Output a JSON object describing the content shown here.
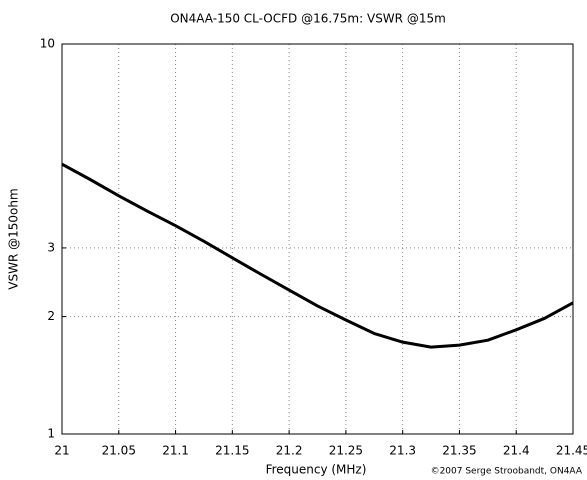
{
  "chart_data": {
    "type": "line",
    "title": "ON4AA-150 CL-OCFD @16.75m: VSWR @15m",
    "x_label": "Frequency (MHz)",
    "y_label": "VSWR @150ohm",
    "annotation": "©2007 Serge Stroobandt, ON4AA",
    "x": [
      21,
      21.025,
      21.05,
      21.075,
      21.1,
      21.125,
      21.15,
      21.175,
      21.2,
      21.225,
      21.25,
      21.275,
      21.3,
      21.325,
      21.35,
      21.375,
      21.4,
      21.425,
      21.45
    ],
    "series": [
      {
        "name": "VSWR",
        "color": "#000000",
        "values": [
          4.92,
          4.49,
          4.08,
          3.73,
          3.42,
          3.12,
          2.83,
          2.57,
          2.34,
          2.13,
          1.96,
          1.81,
          1.72,
          1.67,
          1.69,
          1.74,
          1.85,
          1.98,
          2.17
        ]
      }
    ],
    "xlim": [
      21,
      21.45
    ],
    "xticks": [
      21,
      21.05,
      21.1,
      21.15,
      21.2,
      21.25,
      21.3,
      21.35,
      21.4,
      21.45
    ],
    "ylim": [
      1,
      10
    ],
    "yticks": [
      1,
      2,
      3,
      10
    ],
    "log_y": true,
    "grid": true
  }
}
